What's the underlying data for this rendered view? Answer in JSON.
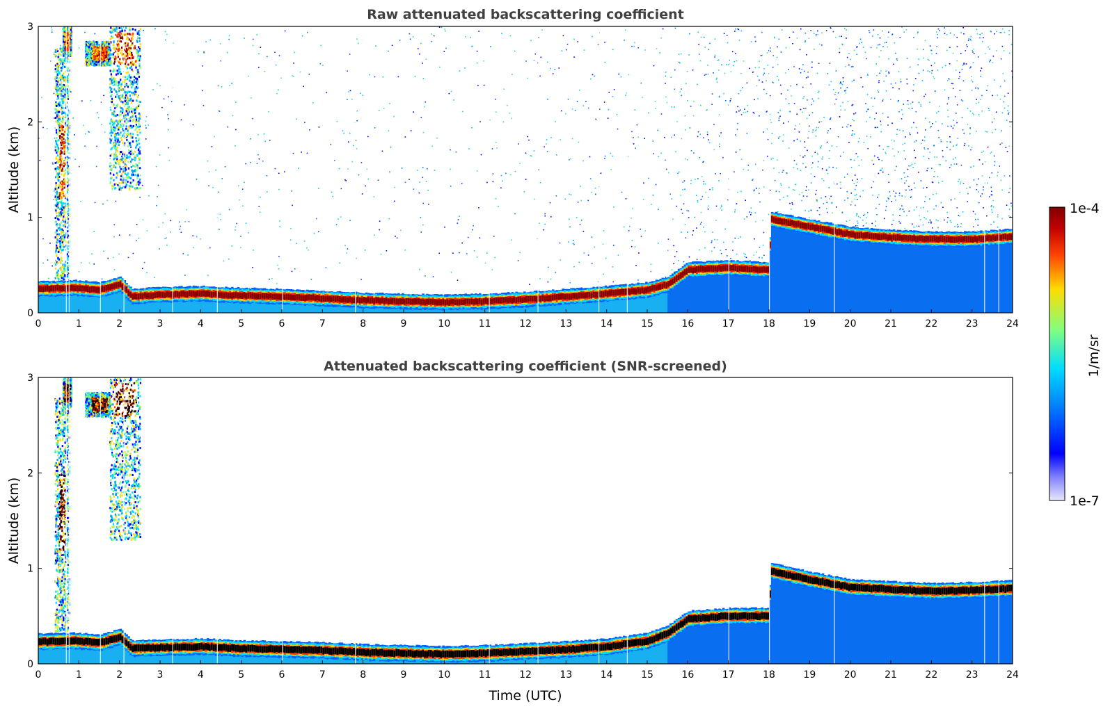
{
  "chart_data": [
    {
      "type": "heatmap",
      "title": "Raw attenuated backscattering coefficient",
      "xlabel": "",
      "ylabel": "Altitude (km)",
      "xlim": [
        0,
        24
      ],
      "ylim": [
        0,
        3
      ],
      "xticks": [
        "0",
        "1",
        "2",
        "3",
        "4",
        "5",
        "6",
        "7",
        "8",
        "9",
        "10",
        "11",
        "12",
        "13",
        "14",
        "15",
        "16",
        "17",
        "18",
        "19",
        "20",
        "21",
        "22",
        "23",
        "24"
      ],
      "yticks": [
        "0",
        "1",
        "2",
        "3"
      ],
      "background_noise": "present",
      "layer_center_km": [
        {
          "t": 0,
          "alt": 0.25
        },
        {
          "t": 0.9,
          "alt": 0.26
        },
        {
          "t": 1.5,
          "alt": 0.24
        },
        {
          "t": 2.0,
          "alt": 0.3
        },
        {
          "t": 2.3,
          "alt": 0.17
        },
        {
          "t": 3,
          "alt": 0.19
        },
        {
          "t": 4,
          "alt": 0.2
        },
        {
          "t": 5,
          "alt": 0.18
        },
        {
          "t": 6,
          "alt": 0.17
        },
        {
          "t": 7,
          "alt": 0.15
        },
        {
          "t": 8,
          "alt": 0.13
        },
        {
          "t": 9,
          "alt": 0.12
        },
        {
          "t": 10,
          "alt": 0.11
        },
        {
          "t": 11,
          "alt": 0.12
        },
        {
          "t": 12,
          "alt": 0.14
        },
        {
          "t": 13,
          "alt": 0.17
        },
        {
          "t": 14,
          "alt": 0.2
        },
        {
          "t": 15,
          "alt": 0.24
        },
        {
          "t": 15.5,
          "alt": 0.3
        },
        {
          "t": 16,
          "alt": 0.45
        },
        {
          "t": 17,
          "alt": 0.47
        },
        {
          "t": 17.95,
          "alt": 0.45
        },
        {
          "t": 18.05,
          "alt": 0.98
        },
        {
          "t": 19,
          "alt": 0.9
        },
        {
          "t": 20,
          "alt": 0.82
        },
        {
          "t": 21,
          "alt": 0.79
        },
        {
          "t": 22,
          "alt": 0.77
        },
        {
          "t": 23,
          "alt": 0.77
        },
        {
          "t": 24,
          "alt": 0.8
        }
      ]
    },
    {
      "type": "heatmap",
      "title": "Attenuated backscattering coefficient (SNR-screened)",
      "xlabel": "Time (UTC)",
      "ylabel": "Altitude (km)",
      "xlim": [
        0,
        24
      ],
      "ylim": [
        0,
        3
      ],
      "xticks": [
        "0",
        "1",
        "2",
        "3",
        "4",
        "5",
        "6",
        "7",
        "8",
        "9",
        "10",
        "11",
        "12",
        "13",
        "14",
        "15",
        "16",
        "17",
        "18",
        "19",
        "20",
        "21",
        "22",
        "23",
        "24"
      ],
      "yticks": [
        "0",
        "1",
        "2",
        "3"
      ],
      "background_noise": "screened",
      "layer_center_km": [
        {
          "t": 0,
          "alt": 0.23
        },
        {
          "t": 0.9,
          "alt": 0.24
        },
        {
          "t": 1.5,
          "alt": 0.22
        },
        {
          "t": 2.0,
          "alt": 0.28
        },
        {
          "t": 2.3,
          "alt": 0.16
        },
        {
          "t": 3,
          "alt": 0.17
        },
        {
          "t": 4,
          "alt": 0.18
        },
        {
          "t": 5,
          "alt": 0.16
        },
        {
          "t": 6,
          "alt": 0.15
        },
        {
          "t": 7,
          "alt": 0.14
        },
        {
          "t": 8,
          "alt": 0.12
        },
        {
          "t": 9,
          "alt": 0.11
        },
        {
          "t": 10,
          "alt": 0.1
        },
        {
          "t": 11,
          "alt": 0.11
        },
        {
          "t": 12,
          "alt": 0.13
        },
        {
          "t": 13,
          "alt": 0.15
        },
        {
          "t": 14,
          "alt": 0.18
        },
        {
          "t": 15,
          "alt": 0.24
        },
        {
          "t": 15.5,
          "alt": 0.32
        },
        {
          "t": 16,
          "alt": 0.47
        },
        {
          "t": 17,
          "alt": 0.5
        },
        {
          "t": 17.95,
          "alt": 0.5
        },
        {
          "t": 18.05,
          "alt": 0.97
        },
        {
          "t": 19,
          "alt": 0.88
        },
        {
          "t": 20,
          "alt": 0.8
        },
        {
          "t": 21,
          "alt": 0.78
        },
        {
          "t": 22,
          "alt": 0.76
        },
        {
          "t": 23,
          "alt": 0.77
        },
        {
          "t": 24,
          "alt": 0.79
        }
      ]
    }
  ],
  "colorbar": {
    "label": "1/m/sr",
    "max_label": "1e-4",
    "min_label": "1e-7",
    "scale": "log",
    "range": [
      1e-07,
      0.0001
    ],
    "colormap": [
      "#e8e8fa",
      "#0000ff",
      "#0080ff",
      "#00dcff",
      "#80ff80",
      "#ffdc00",
      "#ff4000",
      "#800000"
    ]
  }
}
